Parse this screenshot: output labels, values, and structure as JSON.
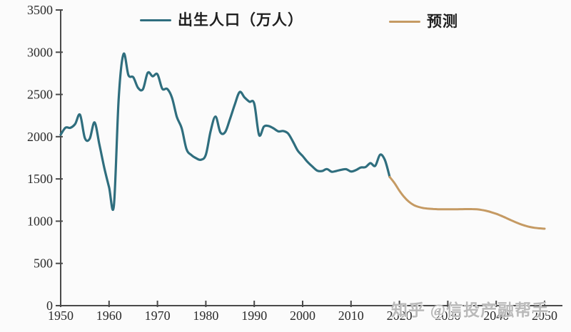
{
  "page": {
    "background": "#fbfbfb"
  },
  "watermark": {
    "text": "知乎 @信投产融帮手",
    "color": "#bababa"
  },
  "legend": {
    "items": [
      {
        "label": "出生人口（万人）",
        "color": "#2f6e7e"
      },
      {
        "label": "预测",
        "color": "#c59a63"
      }
    ]
  },
  "chart_data": {
    "type": "line",
    "title": "",
    "xlabel": "",
    "ylabel": "",
    "xlim": [
      1950,
      2050
    ],
    "ylim": [
      0,
      3500
    ],
    "x_ticks": [
      1950,
      1960,
      1970,
      1980,
      1990,
      2000,
      2010,
      2020,
      2030,
      2040,
      2050
    ],
    "y_ticks": [
      0,
      500,
      1000,
      1500,
      2000,
      2500,
      3000,
      3500
    ],
    "grid": false,
    "legend_position": "top",
    "series": [
      {
        "name": "出生人口（万人）",
        "color": "#2f6e7e",
        "stroke_width": 3.2,
        "x": [
          1950,
          1951,
          1952,
          1953,
          1954,
          1955,
          1956,
          1957,
          1958,
          1959,
          1960,
          1961,
          1962,
          1963,
          1964,
          1965,
          1966,
          1967,
          1968,
          1969,
          1970,
          1971,
          1972,
          1973,
          1974,
          1975,
          1976,
          1977,
          1978,
          1979,
          1980,
          1981,
          1982,
          1983,
          1984,
          1985,
          1986,
          1987,
          1988,
          1989,
          1990,
          1991,
          1992,
          1993,
          1994,
          1995,
          1996,
          1997,
          1998,
          1999,
          2000,
          2001,
          2002,
          2003,
          2004,
          2005,
          2006,
          2007,
          2008,
          2009,
          2010,
          2011,
          2012,
          2013,
          2014,
          2015,
          2016,
          2017,
          2018
        ],
        "y": [
          2023,
          2107,
          2105,
          2151,
          2260,
          1984,
          1976,
          2169,
          1909,
          1635,
          1402,
          1187,
          2466,
          2980,
          2729,
          2704,
          2577,
          2563,
          2757,
          2715,
          2739,
          2567,
          2566,
          2463,
          2235,
          2102,
          1853,
          1783,
          1745,
          1727,
          1787,
          2069,
          2238,
          2052,
          2055,
          2211,
          2384,
          2529,
          2464,
          2414,
          2391,
          2020,
          2120,
          2126,
          2098,
          2063,
          2067,
          2038,
          1942,
          1834,
          1771,
          1702,
          1647,
          1599,
          1593,
          1617,
          1585,
          1595,
          1608,
          1615,
          1588,
          1604,
          1635,
          1640,
          1687,
          1655,
          1786,
          1723,
          1523
        ]
      },
      {
        "name": "预测",
        "color": "#c59a63",
        "stroke_width": 3,
        "x": [
          2018,
          2019,
          2020,
          2021,
          2022,
          2023,
          2024,
          2025,
          2026,
          2027,
          2028,
          2029,
          2030,
          2031,
          2032,
          2033,
          2034,
          2035,
          2036,
          2037,
          2038,
          2039,
          2040,
          2041,
          2042,
          2043,
          2044,
          2045,
          2046,
          2047,
          2048,
          2049,
          2050
        ],
        "y": [
          1523,
          1450,
          1360,
          1285,
          1228,
          1190,
          1168,
          1155,
          1148,
          1144,
          1141,
          1140,
          1140,
          1140,
          1141,
          1142,
          1143,
          1143,
          1140,
          1133,
          1122,
          1106,
          1087,
          1064,
          1039,
          1013,
          988,
          965,
          946,
          931,
          921,
          915,
          911
        ]
      }
    ]
  }
}
